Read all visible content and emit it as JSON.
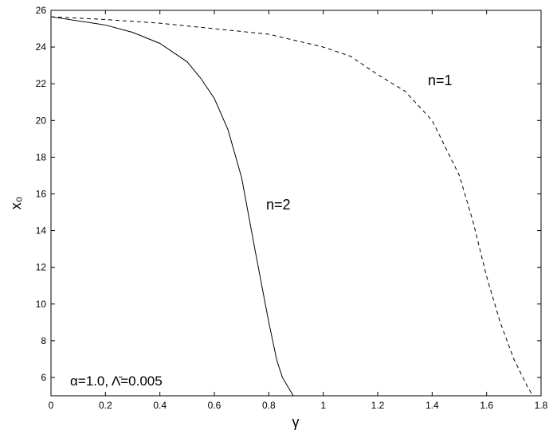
{
  "chart_data": {
    "type": "line",
    "xlabel": "γ",
    "ylabel": "x₀",
    "annotation": "α=1.0, Λ̄=0.005",
    "xlim": [
      0,
      1.8
    ],
    "ylim": [
      5,
      26
    ],
    "xticks": [
      0,
      0.2,
      0.4,
      0.6,
      0.8,
      1,
      1.2,
      1.4,
      1.6,
      1.8
    ],
    "yticks": [
      6,
      8,
      10,
      12,
      14,
      16,
      18,
      20,
      22,
      24,
      26
    ],
    "series": [
      {
        "name": "n=2",
        "color": "#000000",
        "dash": "solid",
        "x": [
          0,
          0.2,
          0.3,
          0.4,
          0.5,
          0.55,
          0.6,
          0.65,
          0.7,
          0.75,
          0.8,
          0.83,
          0.85,
          0.87,
          0.89
        ],
        "values": [
          25.65,
          25.2,
          24.8,
          24.2,
          23.2,
          22.3,
          21.2,
          19.5,
          16.9,
          12.9,
          9.0,
          6.9,
          6.0,
          5.5,
          5.0
        ]
      },
      {
        "name": "n=1",
        "color": "#000000",
        "dash": "dashed",
        "x": [
          0,
          0.2,
          0.4,
          0.6,
          0.8,
          1.0,
          1.1,
          1.2,
          1.3,
          1.4,
          1.5,
          1.55,
          1.6,
          1.65,
          1.7,
          1.75,
          1.77
        ],
        "values": [
          25.65,
          25.5,
          25.3,
          25.0,
          24.7,
          24.0,
          23.5,
          22.5,
          21.6,
          20.0,
          17.0,
          14.5,
          11.5,
          9.0,
          7.0,
          5.5,
          5.0
        ]
      }
    ]
  }
}
